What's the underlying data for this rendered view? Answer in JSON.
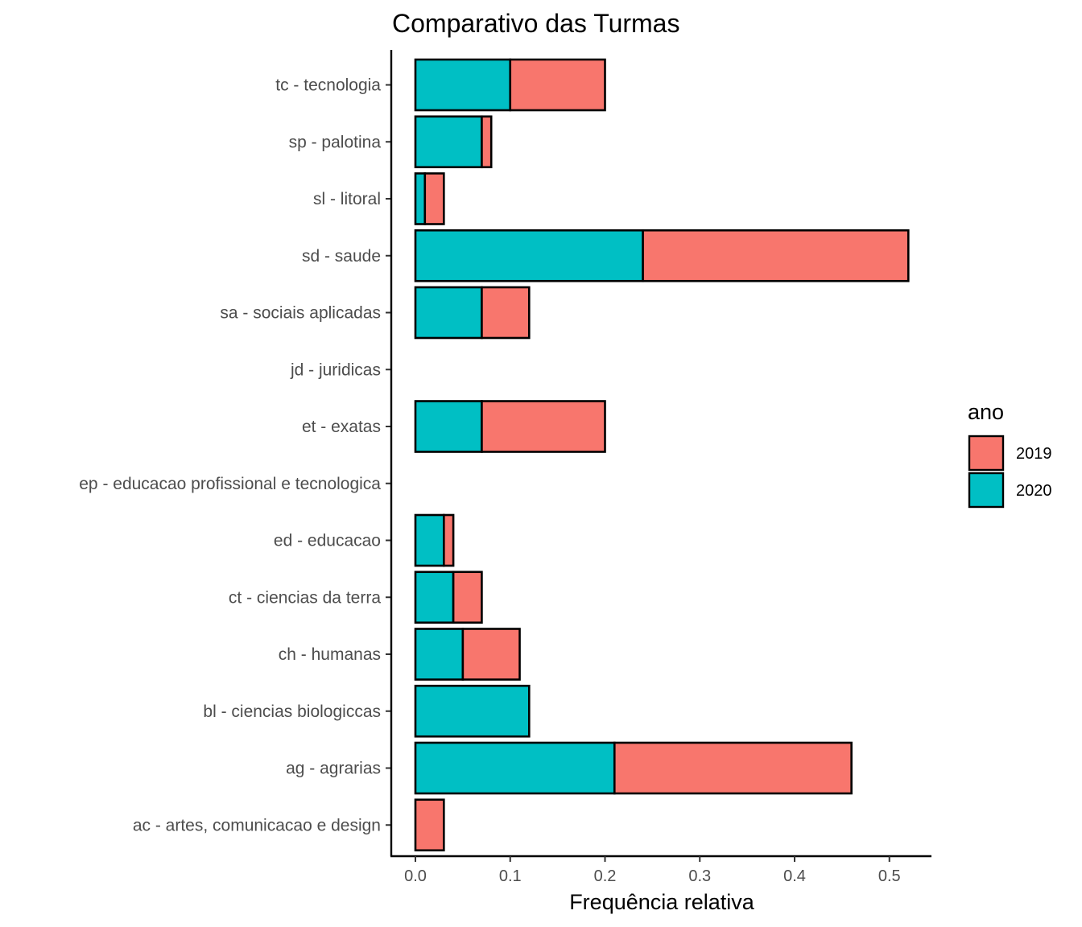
{
  "chart_data": {
    "type": "bar",
    "orientation": "horizontal",
    "stacked": true,
    "title": "Comparativo das Turmas",
    "xlabel": "Frequência relativa",
    "ylabel": "",
    "xlim": [
      0,
      0.52
    ],
    "xticks": [
      0.0,
      0.1,
      0.2,
      0.3,
      0.4,
      0.5
    ],
    "xtick_labels": [
      "0.0",
      "0.1",
      "0.2",
      "0.3",
      "0.4",
      "0.5"
    ],
    "categories": [
      "tc - tecnologia",
      "sp - palotina",
      "sl - litoral",
      "sd - saude",
      "sa - sociais aplicadas",
      "jd - juridicas",
      "et - exatas",
      "ep - educacao profissional e tecnologica",
      "ed - educacao",
      "ct - ciencias da terra",
      "ch - humanas",
      "bl - ciencias biologiccas",
      "ag - agrarias",
      "ac - artes, comunicacao e design"
    ],
    "series": [
      {
        "name": "2019",
        "color": "#F8766D",
        "values": [
          0.1,
          0.01,
          0.02,
          0.28,
          0.05,
          0.0,
          0.13,
          0.0,
          0.01,
          0.03,
          0.06,
          0.0,
          0.25,
          0.03
        ]
      },
      {
        "name": "2020",
        "color": "#00BFC4",
        "values": [
          0.1,
          0.07,
          0.01,
          0.24,
          0.07,
          0.0,
          0.07,
          0.0,
          0.03,
          0.04,
          0.05,
          0.12,
          0.21,
          0.0
        ]
      }
    ],
    "legend": {
      "title": "ano",
      "position": "right"
    },
    "grid": false
  }
}
